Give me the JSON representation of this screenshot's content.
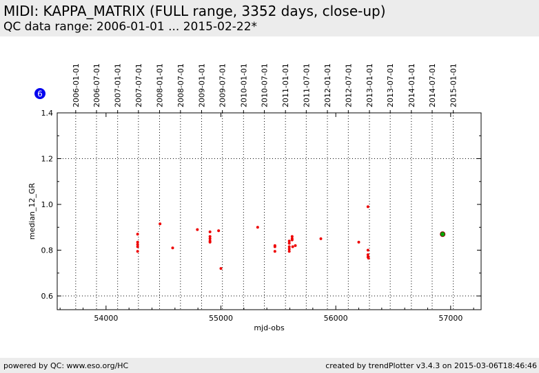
{
  "header": {
    "title": "MIDI: KAPPA_MATRIX (FULL range, 3352 days, close-up)",
    "subtitle": "QC data range: 2006-01-01 ... 2015-02-22*"
  },
  "footer": {
    "left": "powered by QC: www.eso.org/HC",
    "right": "created by trendPlotter v3.4.3 on 2015-03-06T18:46:46"
  },
  "badge": {
    "label": "6",
    "color": "#0000ee"
  },
  "chart_data": {
    "type": "scatter",
    "xlabel": "mjd-obs",
    "ylabel": "median_12_GR",
    "xlim": [
      53575,
      57265
    ],
    "ylim": [
      0.54,
      1.4
    ],
    "xticks": [
      54000,
      55000,
      56000,
      57000
    ],
    "xtick_labels": [
      "54000",
      "55000",
      "56000",
      "57000"
    ],
    "yticks": [
      0.6,
      0.8,
      1.0,
      1.2,
      1.4
    ],
    "ytick_labels": [
      "0.6",
      "0.8",
      "1.0",
      "1.2",
      "1.4"
    ],
    "top_axis": {
      "ticks": [
        {
          "label": "2006-01-01",
          "x": 53736
        },
        {
          "label": "2006-07-01",
          "x": 53917
        },
        {
          "label": "2007-01-01",
          "x": 54101
        },
        {
          "label": "2007-07-01",
          "x": 54282
        },
        {
          "label": "2008-01-01",
          "x": 54466
        },
        {
          "label": "2008-07-01",
          "x": 54648
        },
        {
          "label": "2009-01-01",
          "x": 54832
        },
        {
          "label": "2009-07-01",
          "x": 55013
        },
        {
          "label": "2010-01-01",
          "x": 55197
        },
        {
          "label": "2010-07-01",
          "x": 55378
        },
        {
          "label": "2011-01-01",
          "x": 55562
        },
        {
          "label": "2011-07-01",
          "x": 55743
        },
        {
          "label": "2012-01-01",
          "x": 55927
        },
        {
          "label": "2012-07-01",
          "x": 56109
        },
        {
          "label": "2013-01-01",
          "x": 56293
        },
        {
          "label": "2013-07-01",
          "x": 56474
        },
        {
          "label": "2014-01-01",
          "x": 56658
        },
        {
          "label": "2014-07-01",
          "x": 56839
        },
        {
          "label": "2015-01-01",
          "x": 57023
        }
      ]
    },
    "horizontal_gridlines": [
      0.6,
      1.2
    ],
    "grid": true,
    "series": [
      {
        "color": "#ee0000",
        "points": [
          [
            54275,
            0.87
          ],
          [
            54275,
            0.835
          ],
          [
            54275,
            0.825
          ],
          [
            54275,
            0.815
          ],
          [
            54275,
            0.795
          ],
          [
            54470,
            0.915
          ],
          [
            54580,
            0.81
          ],
          [
            54795,
            0.89
          ],
          [
            54905,
            0.88
          ],
          [
            54905,
            0.86
          ],
          [
            54905,
            0.85
          ],
          [
            54905,
            0.84
          ],
          [
            54905,
            0.835
          ],
          [
            54980,
            0.885
          ],
          [
            55000,
            0.72
          ],
          [
            55320,
            0.9
          ],
          [
            55470,
            0.82
          ],
          [
            55470,
            0.815
          ],
          [
            55470,
            0.795
          ],
          [
            55595,
            0.84
          ],
          [
            55595,
            0.83
          ],
          [
            55595,
            0.815
          ],
          [
            55595,
            0.805
          ],
          [
            55595,
            0.795
          ],
          [
            55620,
            0.86
          ],
          [
            55620,
            0.85
          ],
          [
            55620,
            0.845
          ],
          [
            55625,
            0.815
          ],
          [
            55648,
            0.82
          ],
          [
            55870,
            0.85
          ],
          [
            56200,
            0.835
          ],
          [
            56280,
            0.99
          ],
          [
            56280,
            0.8
          ],
          [
            56280,
            0.78
          ],
          [
            56280,
            0.77
          ],
          [
            56285,
            0.765
          ]
        ]
      },
      {
        "color": "#00aa00",
        "outline": "#880000",
        "points": [
          [
            56930,
            0.87
          ]
        ]
      }
    ]
  }
}
